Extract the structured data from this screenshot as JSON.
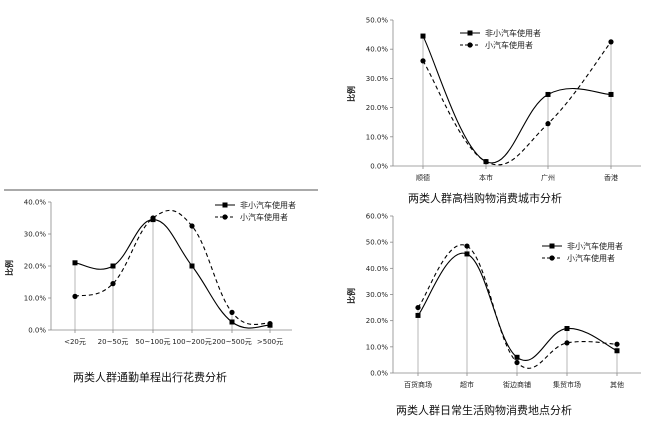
{
  "chart_data": [
    {
      "type": "line",
      "title": "两类人群通勤单程出行花费分析",
      "ylabel": "比例",
      "categories": [
        "<20元",
        "20~50元",
        "50~100元",
        "100~200元",
        "200~500元",
        ">500元"
      ],
      "ylim": [
        0,
        40
      ],
      "yticks": [
        "0.0%",
        "10.0%",
        "20.0%",
        "30.0%",
        "40.0%"
      ],
      "legend_position": "top-right",
      "series": [
        {
          "name": "非小汽车使用者",
          "marker": "square",
          "dash": "solid",
          "values": [
            21,
            20,
            34.5,
            20,
            2.5,
            1.5
          ]
        },
        {
          "name": "小汽车使用者",
          "marker": "circle",
          "dash": "dashed",
          "values": [
            10.5,
            14.5,
            35,
            32.5,
            5.5,
            2
          ]
        }
      ]
    },
    {
      "type": "line",
      "title": "两类人群高档购物消费城市分析",
      "ylabel": "比例",
      "categories": [
        "顺德",
        "本市",
        "广州",
        "香港"
      ],
      "ylim": [
        0,
        50
      ],
      "yticks": [
        "0.0%",
        "10.0%",
        "20.0%",
        "30.0%",
        "40.0%",
        "50.0%"
      ],
      "legend_position": "top-left",
      "series": [
        {
          "name": "非小汽车使用者",
          "marker": "square",
          "dash": "solid",
          "values": [
            44.5,
            1.5,
            24.5,
            24.5
          ]
        },
        {
          "name": "小汽车使用者",
          "marker": "circle",
          "dash": "dashed",
          "values": [
            36,
            1.5,
            14.5,
            42.5
          ]
        }
      ]
    },
    {
      "type": "line",
      "title": "两类人群日常生活购物消费地点分析",
      "ylabel": "比例",
      "categories": [
        "百货商场",
        "超市",
        "街边商铺",
        "集贸市场",
        "其他"
      ],
      "ylim": [
        0,
        60
      ],
      "yticks": [
        "0.0%",
        "10.0%",
        "20.0%",
        "30.0%",
        "40.0%",
        "50.0%",
        "60.0%"
      ],
      "legend_position": "top-right",
      "series": [
        {
          "name": "非小汽车使用者",
          "marker": "square",
          "dash": "solid",
          "values": [
            22,
            45.5,
            6,
            17,
            8.5
          ]
        },
        {
          "name": "小汽车使用者",
          "marker": "circle",
          "dash": "dashed",
          "values": [
            25,
            48.5,
            4,
            11.5,
            11
          ]
        }
      ]
    }
  ]
}
